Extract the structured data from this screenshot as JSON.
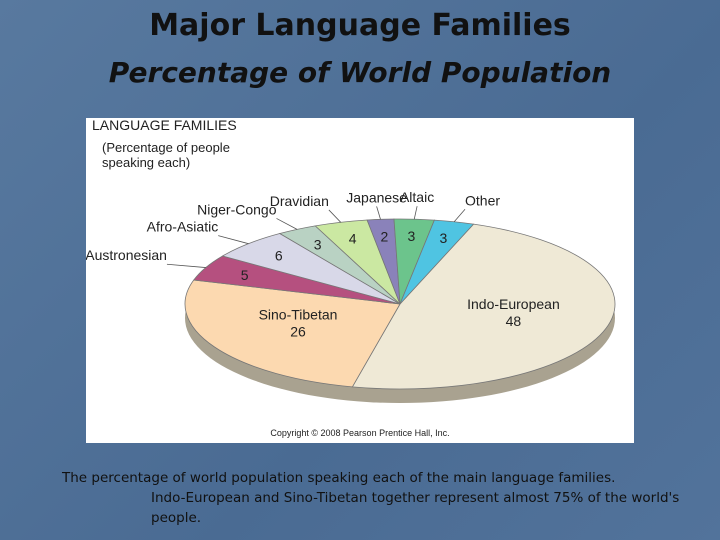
{
  "slide_title": "Major Language Families",
  "slide_subtitle": "Percentage of World Population",
  "chart_data": {
    "type": "pie",
    "title": "LANGUAGE FAMILIES",
    "subtitle": "(Percentage of people speaking each)",
    "categories": [
      "Indo-European",
      "Sino-Tibetan",
      "Austronesian",
      "Afro-Asiatic",
      "Niger-Congo",
      "Dravidian",
      "Japanese",
      "Altaic",
      "Other"
    ],
    "values": [
      48,
      26,
      5,
      6,
      3,
      4,
      2,
      3,
      3
    ],
    "colors": [
      "#efe9d6",
      "#fcd9b0",
      "#b5507f",
      "#d8d8e8",
      "#b9d2c3",
      "#cbe8a2",
      "#8a82ba",
      "#6cc48c",
      "#4fc4e2"
    ],
    "copyright": "Copyright © 2008 Pearson Prentice Hall, Inc."
  },
  "caption": {
    "line1": "The percentage of world population speaking each of the main language families.",
    "line2": "Indo-European and Sino-Tibetan together represent almost 75% of the world's people."
  }
}
